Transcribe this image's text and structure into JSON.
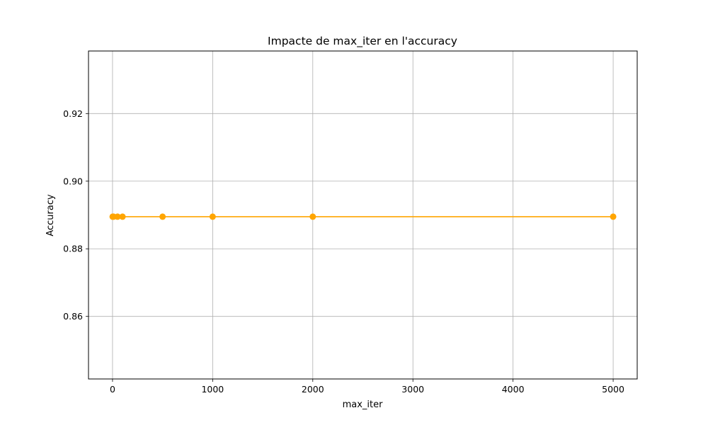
{
  "chart_data": {
    "type": "line",
    "title": "Impacte de max_iter en l'accuracy",
    "xlabel": "max_iter",
    "ylabel": "Accuracy",
    "xlim": [
      -240,
      5240
    ],
    "ylim": [
      0.8415,
      0.9385
    ],
    "xticks": [
      0,
      1000,
      2000,
      3000,
      4000,
      5000
    ],
    "yticks": [
      0.86,
      0.88,
      0.9,
      0.92
    ],
    "ytick_format": 2,
    "grid": true,
    "series": [
      {
        "name": "",
        "color": "#FFA500",
        "marker": "circle",
        "x": [
          1,
          10,
          50,
          100,
          500,
          1000,
          2000,
          5000
        ],
        "y": [
          0.8895,
          0.8895,
          0.8895,
          0.8895,
          0.8895,
          0.8895,
          0.8895,
          0.8895
        ]
      }
    ]
  }
}
